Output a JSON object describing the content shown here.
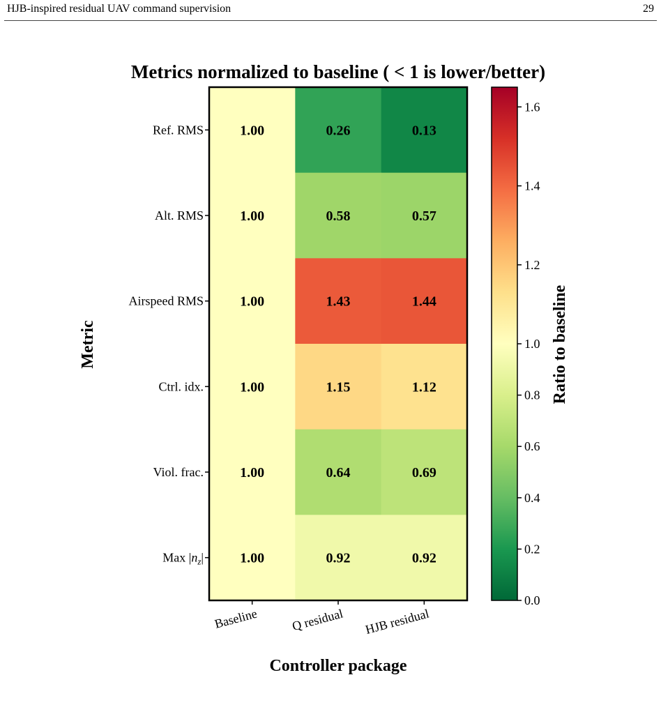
{
  "header": {
    "title": "HJB-inspired residual UAV command supervision",
    "page_number": "29"
  },
  "colors": {
    "high": "#a50026",
    "mid": "#ffffbf",
    "low": "#006837"
  },
  "chart_data": {
    "type": "heatmap",
    "title": "Metrics normalized to baseline ( < 1 is lower/better)",
    "xlabel": "Controller package",
    "ylabel": "Metric",
    "columns": [
      "Baseline",
      "Q residual",
      "HJB residual"
    ],
    "rows": [
      "Ref. RMS",
      "Alt. RMS",
      "Airspeed RMS",
      "Ctrl. idx.",
      "Viol. frac.",
      "Max |n_z|"
    ],
    "values": [
      [
        1.0,
        0.26,
        0.13
      ],
      [
        1.0,
        0.58,
        0.57
      ],
      [
        1.0,
        1.43,
        1.44
      ],
      [
        1.0,
        1.15,
        1.12
      ],
      [
        1.0,
        0.64,
        0.69
      ],
      [
        1.0,
        0.92,
        0.92
      ]
    ],
    "cell_labels": [
      [
        "1.00",
        "0.26",
        "0.13"
      ],
      [
        "1.00",
        "0.58",
        "0.57"
      ],
      [
        "1.00",
        "1.43",
        "1.44"
      ],
      [
        "1.00",
        "1.15",
        "1.12"
      ],
      [
        "1.00",
        "0.64",
        "0.69"
      ],
      [
        "1.00",
        "0.92",
        "0.92"
      ]
    ],
    "colorbar": {
      "label": "Ratio to baseline",
      "range": [
        0.0,
        1.65
      ],
      "center": 1.0,
      "colormap": "RdYlGn_r",
      "ticks": [
        "0.0",
        "0.2",
        "0.4",
        "0.6",
        "0.8",
        "1.0",
        "1.2",
        "1.4",
        "1.6"
      ]
    }
  }
}
